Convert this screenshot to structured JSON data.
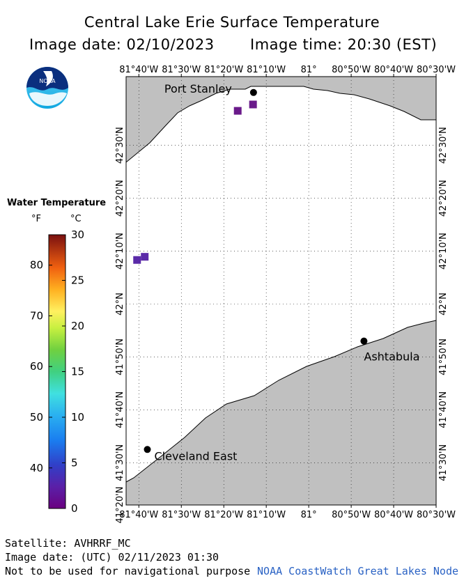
{
  "header": {
    "title": "Central Lake Erie Surface Temperature",
    "image_date_line": "Image date: 02/10/2023",
    "image_time_line": "Image time: 20:30 (EST)"
  },
  "logo": {
    "text": "NOAA"
  },
  "map": {
    "lon_labels": [
      "81°40'W",
      "81°30'W",
      "81°20'W",
      "81°10'W",
      "81°",
      "80°50'W",
      "80°40'W",
      "80°30'W"
    ],
    "lat_labels": [
      "42°30'N",
      "42°20'N",
      "42°10'N",
      "42°N",
      "41°50'N",
      "41°40'N",
      "41°30'N"
    ],
    "lat_labels_left": [
      "42°30'N",
      "42°20'N",
      "42°10'N",
      "42°N",
      "41°50'N",
      "41°40'N",
      "41°30'N",
      "41°20'N"
    ],
    "cities": [
      {
        "name": "Port Stanley",
        "lon": -81.2167,
        "lat": 42.6667
      },
      {
        "name": "Ashtabula",
        "lon": -80.7833,
        "lat": 41.8833
      },
      {
        "name": "Cleveland East",
        "lon": -81.6333,
        "lat": 41.5417
      }
    ],
    "temperature_pixels": [
      {
        "lon": -81.28,
        "lat": 42.61,
        "temp_c": 1
      },
      {
        "lon": -81.22,
        "lat": 42.63,
        "temp_c": 1
      },
      {
        "lon": -81.645,
        "lat": 42.15,
        "temp_c": 1.5
      },
      {
        "lon": -81.675,
        "lat": 42.14,
        "temp_c": 1.5
      }
    ],
    "land_color": "#c0c0c0",
    "water_color": "#ffffff"
  },
  "legend": {
    "title": "Water Temperature",
    "unit_f": "°F",
    "unit_c": "°C",
    "f_ticks": [
      "80",
      "70",
      "60",
      "50",
      "40"
    ],
    "c_ticks": [
      "30",
      "25",
      "20",
      "15",
      "10",
      "5",
      "0"
    ]
  },
  "footer": {
    "satellite": "Satellite: AVHRRF_MC",
    "utc_date": "Image date: (UTC) 02/11/2023  01:30",
    "disclaimer": "Not to be used for navigational purpose",
    "credit": "NOAA CoastWatch Great Lakes Node"
  }
}
